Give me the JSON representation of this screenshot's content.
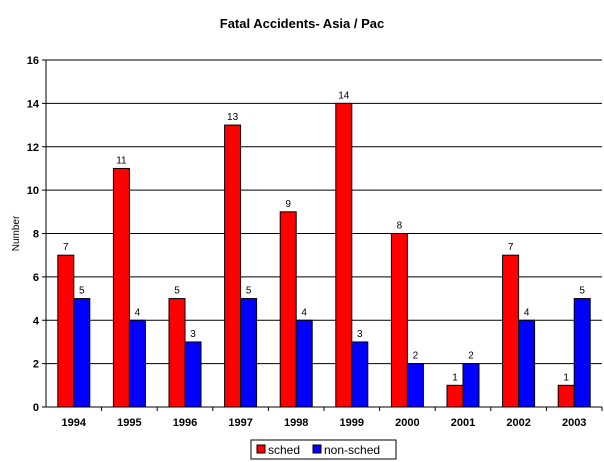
{
  "chart_data": {
    "type": "bar",
    "title": "Fatal Accidents- Asia / Pac",
    "xlabel": "",
    "ylabel": "Number",
    "ylim": [
      0,
      16
    ],
    "ytick_step": 2,
    "grid": true,
    "legend_position": "bottom",
    "categories": [
      "1994",
      "1995",
      "1996",
      "1997",
      "1998",
      "1999",
      "2000",
      "2001",
      "2002",
      "2003"
    ],
    "series": [
      {
        "name": "sched",
        "color": "#ff0000",
        "values": [
          7,
          11,
          5,
          13,
          9,
          14,
          8,
          1,
          7,
          1
        ]
      },
      {
        "name": "non-sched",
        "color": "#0000ff",
        "values": [
          5,
          4,
          3,
          5,
          4,
          3,
          2,
          2,
          4,
          5
        ]
      }
    ]
  }
}
